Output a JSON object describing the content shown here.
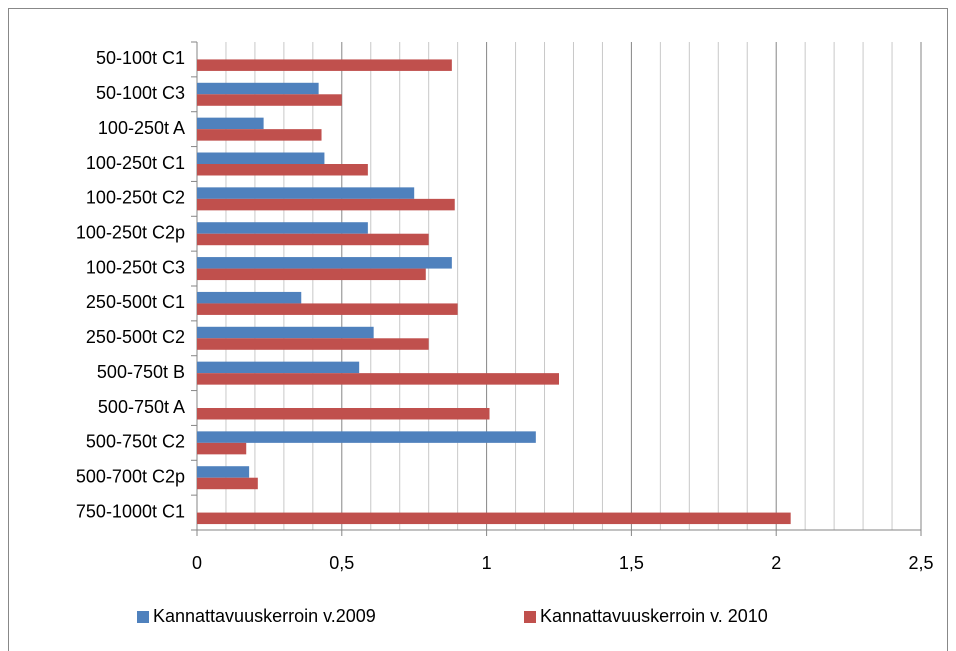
{
  "chart_data": {
    "type": "bar",
    "orientation": "horizontal",
    "categories": [
      "50-100t C1",
      "50-100t C3",
      "100-250t A",
      "100-250t C1",
      "100-250t C2",
      "100-250t C2p",
      "100-250t C3",
      "250-500t C1",
      "250-500t C2",
      "500-750t B",
      "500-750t A",
      "500-750t C2",
      "500-700t C2p",
      "750-1000t C1"
    ],
    "series": [
      {
        "name": "Kannattavuuskerroin v.2009",
        "color": "#4f81bd",
        "values": [
          null,
          0.42,
          0.23,
          0.44,
          0.75,
          0.59,
          0.88,
          0.36,
          0.61,
          0.56,
          null,
          1.17,
          0.18,
          null
        ]
      },
      {
        "name": "Kannattavuuskerroin v. 2010",
        "color": "#c0504d",
        "values": [
          0.88,
          0.5,
          0.43,
          0.59,
          0.89,
          0.8,
          0.79,
          0.9,
          0.8,
          1.25,
          1.01,
          0.17,
          0.21,
          2.05
        ]
      }
    ],
    "xlim": [
      0,
      2.5
    ],
    "xticks": [
      0,
      {
        "value": 0.5,
        "label": "0,5"
      },
      1,
      {
        "value": 1.5,
        "label": "1,5"
      },
      2,
      {
        "value": 2.5,
        "label": "2,5"
      }
    ],
    "xminor_ticks": [
      0.1,
      0.2,
      0.3,
      0.4,
      0.6,
      0.7,
      0.8,
      0.9,
      1.1,
      1.2,
      1.3,
      1.4,
      1.6,
      1.7,
      1.8,
      1.9,
      2.1,
      2.2,
      2.3,
      2.4
    ],
    "grid": true,
    "legend": "bottom"
  }
}
